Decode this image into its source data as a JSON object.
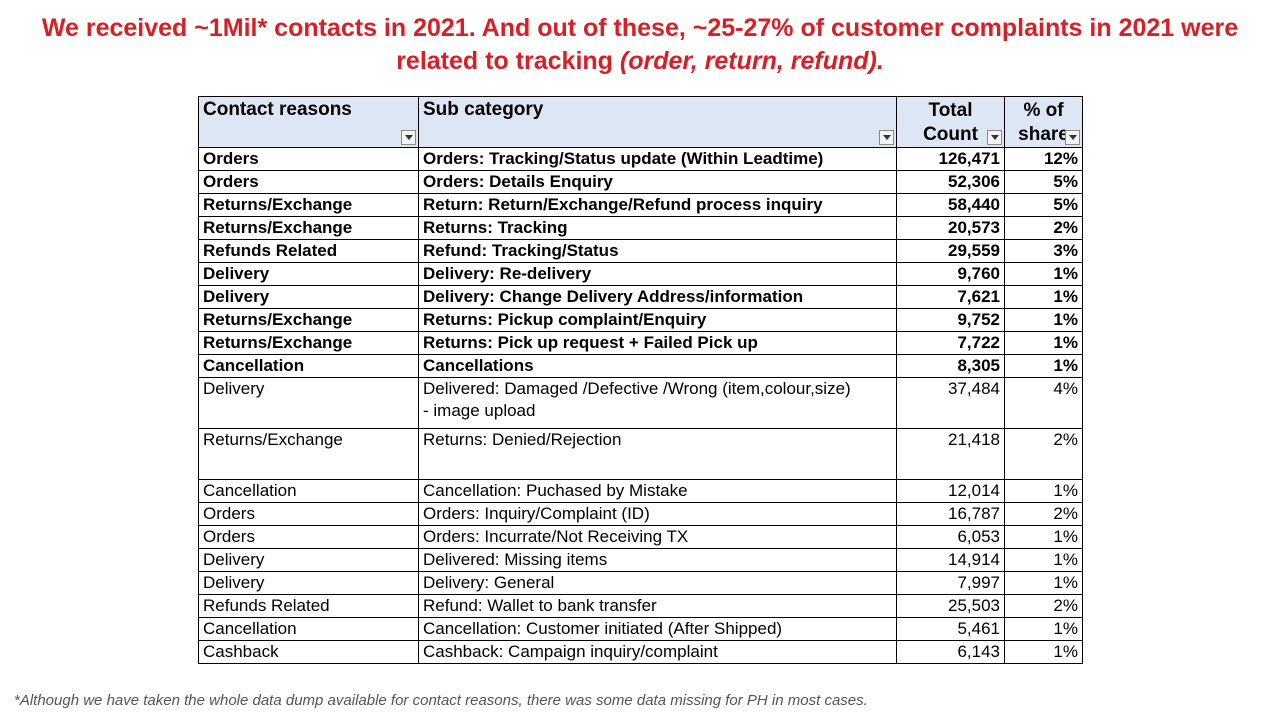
{
  "headline": {
    "line1": "We received ~1Mil* contacts in 2021. And out of these, ~25-27% of customer complaints in 2021 were",
    "line2_plain": "related to tracking ",
    "line2_italic": "(order, return, refund)."
  },
  "colors": {
    "headline": "#d91f26",
    "header_bg": "#dce6f4"
  },
  "table": {
    "headers": {
      "reason": "Contact reasons",
      "sub": "Sub category",
      "count_line1": "Total",
      "count_line2": "Count",
      "share_line1": "% of",
      "share_line2": "share"
    },
    "rows": [
      {
        "reason": "Orders",
        "sub": "Orders: Tracking/Status update (Within Leadtime)",
        "count": "126,471",
        "share": "12%",
        "bold": true
      },
      {
        "reason": "Orders",
        "sub": "Orders: Details Enquiry",
        "count": "52,306",
        "share": "5%",
        "bold": true
      },
      {
        "reason": "Returns/Exchange",
        "sub": "Return: Return/Exchange/Refund process inquiry",
        "count": "58,440",
        "share": "5%",
        "bold": true
      },
      {
        "reason": "Returns/Exchange",
        "sub": "Returns: Tracking",
        "count": "20,573",
        "share": "2%",
        "bold": true
      },
      {
        "reason": "Refunds Related",
        "sub": "Refund: Tracking/Status",
        "count": "29,559",
        "share": "3%",
        "bold": true
      },
      {
        "reason": "Delivery",
        "sub": "Delivery: Re-delivery",
        "count": "9,760",
        "share": "1%",
        "bold": true
      },
      {
        "reason": "Delivery",
        "sub": "Delivery: Change Delivery Address/information",
        "count": "7,621",
        "share": "1%",
        "bold": true
      },
      {
        "reason": "Returns/Exchange",
        "sub": "Returns: Pickup complaint/Enquiry",
        "count": "9,752",
        "share": "1%",
        "bold": true
      },
      {
        "reason": "Returns/Exchange",
        "sub": "Returns: Pick up request + Failed Pick up",
        "count": "7,722",
        "share": "1%",
        "bold": true
      },
      {
        "reason": "Cancellation",
        "sub": "Cancellations",
        "count": "8,305",
        "share": "1%",
        "bold": true
      },
      {
        "reason": "Delivery",
        "sub": "Delivered: Damaged /Defective /Wrong (item,colour,size)\n- image upload",
        "count": "37,484",
        "share": "4%",
        "bold": false,
        "wrap": true
      },
      {
        "reason": "Returns/Exchange",
        "sub": "Returns: Denied/Rejection",
        "count": "21,418",
        "share": "2%",
        "bold": false,
        "wrap": true
      },
      {
        "reason": "Cancellation",
        "sub": "Cancellation: Puchased by Mistake",
        "count": "12,014",
        "share": "1%",
        "bold": false
      },
      {
        "reason": "Orders",
        "sub": "Orders: Inquiry/Complaint (ID)",
        "count": "16,787",
        "share": "2%",
        "bold": false
      },
      {
        "reason": "Orders",
        "sub": "Orders: Incurrate/Not Receiving TX",
        "count": "6,053",
        "share": "1%",
        "bold": false
      },
      {
        "reason": "Delivery",
        "sub": "Delivered: Missing items",
        "count": "14,914",
        "share": "1%",
        "bold": false
      },
      {
        "reason": "Delivery",
        "sub": "Delivery: General",
        "count": "7,997",
        "share": "1%",
        "bold": false
      },
      {
        "reason": "Refunds Related",
        "sub": "Refund: Wallet to bank transfer",
        "count": "25,503",
        "share": "2%",
        "bold": false
      },
      {
        "reason": "Cancellation",
        "sub": "Cancellation: Customer initiated (After Shipped)",
        "count": "5,461",
        "share": "1%",
        "bold": false
      },
      {
        "reason": "Cashback",
        "sub": "Cashback: Campaign inquiry/complaint",
        "count": "6,143",
        "share": "1%",
        "bold": false
      }
    ]
  },
  "footnote": "*Although we have taken the whole data dump available for contact reasons, there was some data missing for PH in most cases."
}
